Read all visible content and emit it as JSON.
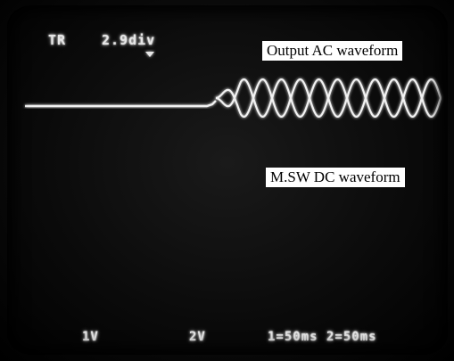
{
  "scope": {
    "header": {
      "mode": "TR",
      "scale": "2.9div"
    },
    "labels": {
      "ac": "Output AC waveform",
      "dc": "M.SW DC waveform"
    },
    "footer": {
      "ch1": "1V",
      "ch2": "2V",
      "timebase": "1=50ms  2=50ms"
    }
  }
}
